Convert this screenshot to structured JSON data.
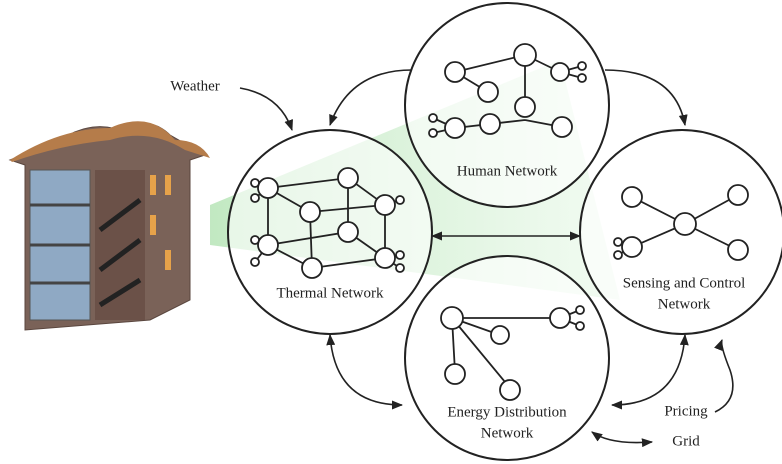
{
  "inputs": {
    "weather": "Weather",
    "pricing": "Pricing",
    "grid": "Grid"
  },
  "networks": [
    {
      "lines": [
        "Human Network"
      ]
    },
    {
      "lines": [
        "Thermal Network"
      ]
    },
    {
      "lines": [
        "Sensing and Control",
        "Network"
      ]
    },
    {
      "lines": [
        "Energy Distribution",
        "Network"
      ]
    }
  ]
}
